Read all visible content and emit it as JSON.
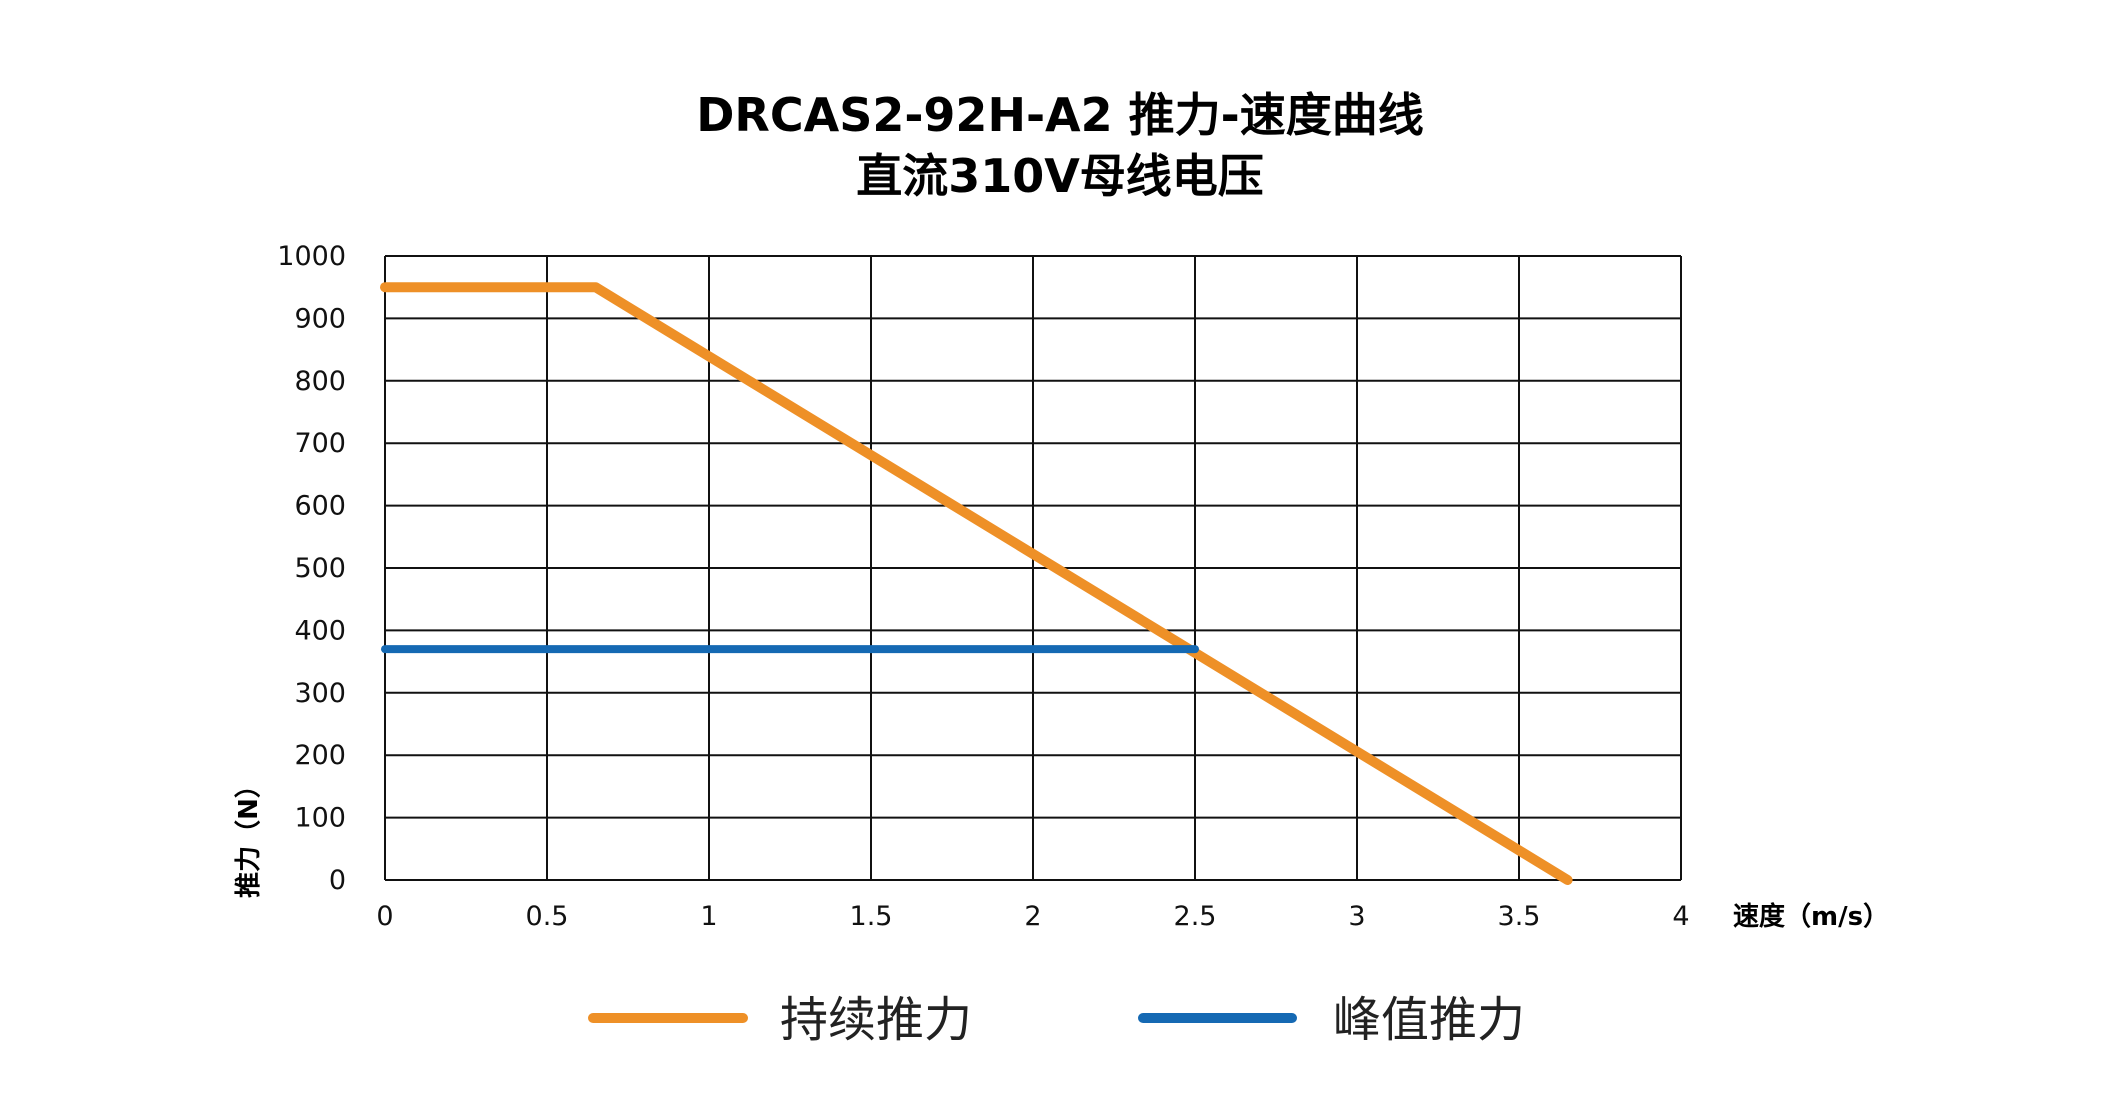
{
  "chart_data": {
    "type": "line",
    "title": "DRCAS2-92H-A2 推力-速度曲线",
    "subtitle": "直流310V母线电压",
    "xlabel": "速度（m/s）",
    "ylabel": "推力（N）",
    "xlim": [
      0,
      4
    ],
    "ylim": [
      0,
      1000
    ],
    "xticks": [
      "0",
      "0.5",
      "1",
      "1.5",
      "2",
      "2.5",
      "3",
      "3.5",
      "4"
    ],
    "yticks": [
      "0",
      "100",
      "200",
      "300",
      "400",
      "500",
      "600",
      "700",
      "800",
      "900",
      "1000"
    ],
    "grid": true,
    "legend_position": "bottom",
    "series": [
      {
        "name": "持续推力",
        "color": "#EE9027",
        "points": [
          [
            0,
            950
          ],
          [
            0.65,
            950
          ],
          [
            3.65,
            0
          ]
        ]
      },
      {
        "name": "峰值推力",
        "color": "#1569B3",
        "points": [
          [
            0,
            370
          ],
          [
            2.5,
            370
          ]
        ]
      }
    ]
  }
}
